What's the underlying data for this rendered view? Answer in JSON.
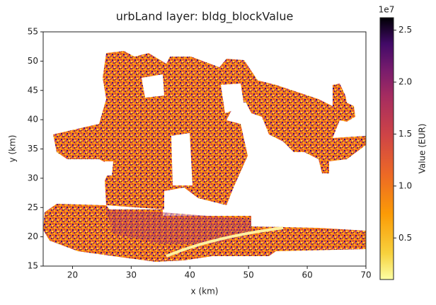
{
  "chart_data": {
    "type": "heatmap",
    "title": "urbLand layer: bldg_blockValue",
    "xlabel": "x (km)",
    "ylabel": "y (km)",
    "xlim": [
      15,
      70
    ],
    "ylim": [
      15,
      55
    ],
    "xticks": [
      20,
      30,
      40,
      50,
      60,
      70
    ],
    "yticks": [
      15,
      20,
      25,
      30,
      35,
      40,
      45,
      50,
      55
    ],
    "colormap": "inferno",
    "colorbar": {
      "label": "Value (EUR)",
      "offset_label": "1e7",
      "clim": [
        0.1,
        2.62
      ],
      "ticks": [
        0.5,
        {
          "value": 1,
          "label": "1.0"
        },
        1.5,
        {
          "value": 2,
          "label": "2.0"
        },
        2.5
      ]
    }
  }
}
